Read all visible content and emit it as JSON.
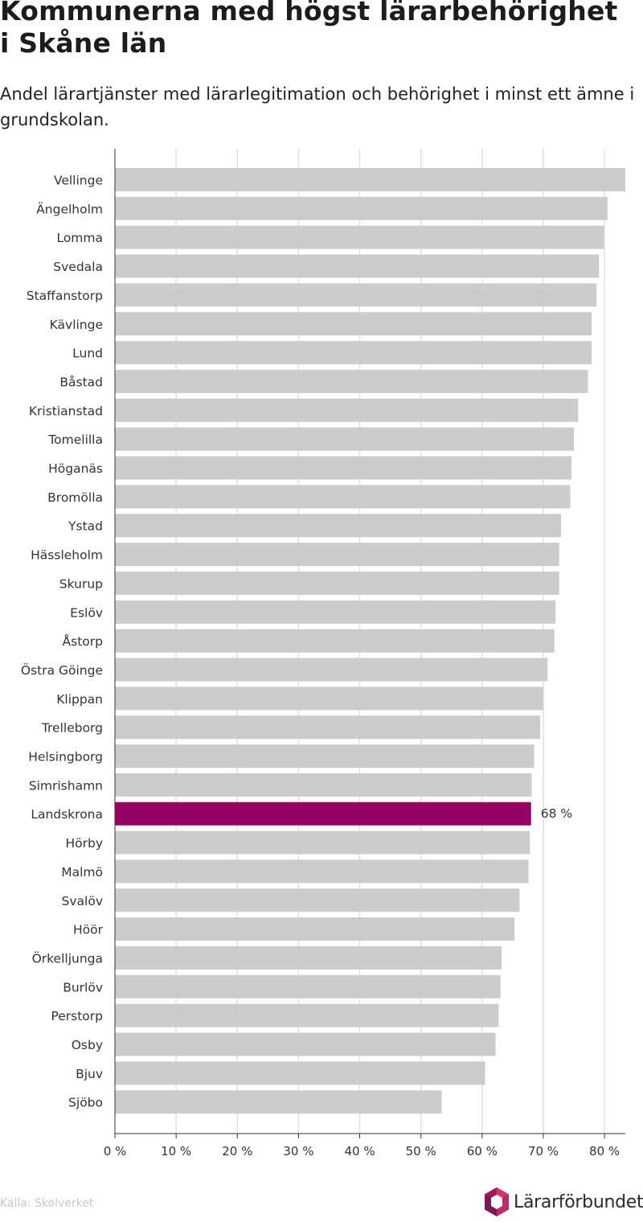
{
  "title": "Kommunerna med högst lärarbehörighet i Skåne län",
  "subtitle": "Andel lärartjänster med lärarlegitimation och behörighet i minst ett ämne i grundskolan.",
  "source": "Källa: Skolverket",
  "logo_text": "Lärarförbundet",
  "colors": {
    "bar": "#cccccc",
    "highlight": "#990066",
    "grid": "#e0e0e0",
    "axis": "#333333"
  },
  "chart_data": {
    "type": "bar",
    "orientation": "horizontal",
    "categories": [
      "Vellinge",
      "Ängelholm",
      "Lomma",
      "Svedala",
      "Staffanstorp",
      "Kävlinge",
      "Lund",
      "Båstad",
      "Kristianstad",
      "Tomelilla",
      "Höganäs",
      "Bromölla",
      "Ystad",
      "Hässleholm",
      "Skurup",
      "Eslöv",
      "Åstorp",
      "Östra Göinge",
      "Klippan",
      "Trelleborg",
      "Helsingborg",
      "Simrishamn",
      "Landskrona",
      "Hörby",
      "Malmö",
      "Svalöv",
      "Höör",
      "Örkelljunga",
      "Burlöv",
      "Perstorp",
      "Osby",
      "Bjuv",
      "Sjöbo"
    ],
    "values": [
      83.4,
      80.5,
      79.9,
      79.1,
      78.7,
      77.9,
      77.9,
      77.3,
      75.7,
      75.0,
      74.6,
      74.4,
      72.9,
      72.6,
      72.6,
      72.0,
      71.8,
      70.7,
      70.0,
      69.5,
      68.5,
      68.1,
      68.0,
      67.8,
      67.6,
      66.1,
      65.3,
      63.2,
      63.0,
      62.7,
      62.2,
      60.5,
      53.4
    ],
    "highlight": "Landskrona",
    "highlight_label": "68 %",
    "xlim": [
      0,
      83.4
    ],
    "ticks": [
      0,
      10,
      20,
      30,
      40,
      50,
      60,
      70,
      80
    ],
    "tick_labels": [
      "0 %",
      "10 %",
      "20 %",
      "30 %",
      "40 %",
      "50 %",
      "60 %",
      "70 %",
      "80 %"
    ],
    "grid": true
  }
}
